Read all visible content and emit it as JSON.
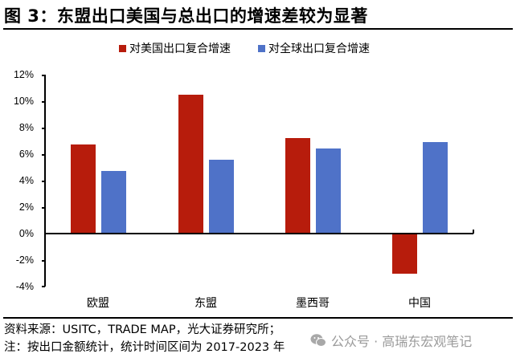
{
  "title": "图 3：东盟出口美国与总出口的增速差较为显著",
  "legend": [
    {
      "label": "对美国出口复合增速",
      "color": "#B71C0C"
    },
    {
      "label": "对全球出口复合增速",
      "color": "#4F72C8"
    }
  ],
  "y_ticks": [
    "12%",
    "10%",
    "8%",
    "6%",
    "4%",
    "2%",
    "0%",
    "-2%",
    "-4%"
  ],
  "categories": [
    "欧盟",
    "东盟",
    "墨西哥",
    "中国"
  ],
  "footer": {
    "source": "资料来源：USITC，TRADE MAP，光大证券研究所；",
    "note": "注：按出口金额统计，统计时间区间为 2017-2023 年"
  },
  "watermark": "公众号 · 高瑞东宏观笔记",
  "chart_data": {
    "type": "bar",
    "title": "图 3：东盟出口美国与总出口的增速差较为显著",
    "categories": [
      "欧盟",
      "东盟",
      "墨西哥",
      "中国"
    ],
    "series": [
      {
        "name": "对美国出口复合增速",
        "color": "#B71C0C",
        "values": [
          6.7,
          10.5,
          7.2,
          -3.0
        ]
      },
      {
        "name": "对全球出口复合增速",
        "color": "#4F72C8",
        "values": [
          4.7,
          5.6,
          6.4,
          6.9
        ]
      }
    ],
    "xlabel": "",
    "ylabel": "",
    "unit": "%",
    "ylim": [
      -4,
      12
    ],
    "y_ticks": [
      -4,
      -2,
      0,
      2,
      4,
      6,
      8,
      10,
      12
    ],
    "grid": false,
    "legend_position": "top"
  }
}
